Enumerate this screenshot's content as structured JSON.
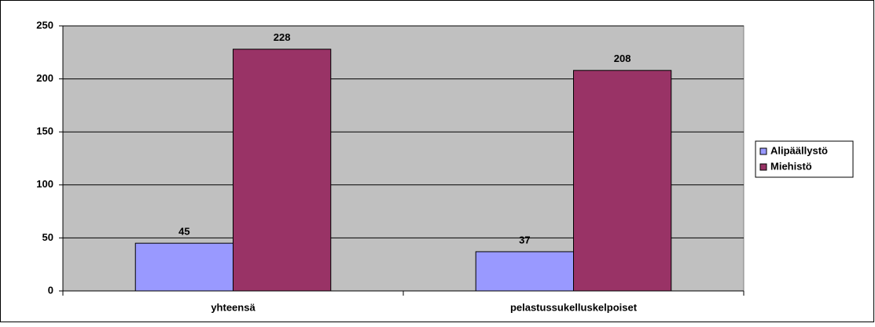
{
  "chart_data": {
    "type": "bar",
    "categories": [
      "yhteensä",
      "pelastussukelluskelpoiset"
    ],
    "series": [
      {
        "name": "Alipäällystö",
        "color": "#9999ff",
        "values": [
          45,
          37
        ]
      },
      {
        "name": "Miehistö",
        "color": "#993366",
        "values": [
          228,
          208
        ]
      }
    ],
    "ylim": [
      0,
      250
    ],
    "yticks": [
      0,
      50,
      100,
      150,
      200,
      250
    ],
    "grid": true,
    "legend": "right",
    "plot_background": "#c0c0c0"
  }
}
